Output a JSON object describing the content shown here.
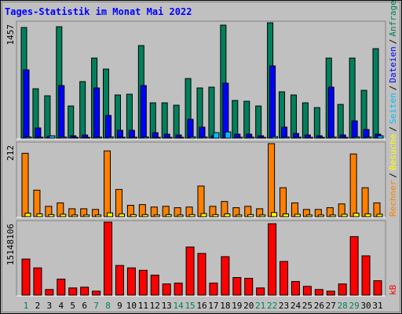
{
  "chart_data": {
    "type": "bar",
    "title": "Tages-Statistik im Monat Mai 2022",
    "categories": [
      "1",
      "2",
      "3",
      "4",
      "5",
      "6",
      "7",
      "8",
      "9",
      "10",
      "11",
      "12",
      "13",
      "14",
      "15",
      "16",
      "17",
      "18",
      "19",
      "20",
      "21",
      "22",
      "23",
      "24",
      "25",
      "26",
      "27",
      "28",
      "29",
      "30",
      "31"
    ],
    "category_colors": [
      "#00805c",
      "#000000",
      "#000000",
      "#000000",
      "#000000",
      "#000000",
      "#00805c",
      "#00805c",
      "#000000",
      "#000000",
      "#000000",
      "#000000",
      "#000000",
      "#00805c",
      "#00805c",
      "#000000",
      "#000000",
      "#000000",
      "#000000",
      "#000000",
      "#00805c",
      "#00805c",
      "#000000",
      "#000000",
      "#000000",
      "#000000",
      "#000000",
      "#00805c",
      "#00805c",
      "#000000",
      "#000000"
    ],
    "legend_separator": "/",
    "panels": [
      {
        "ylim": [
          0,
          1457
        ],
        "yticks": [
          1457
        ],
        "series": [
          {
            "name": "Anfragen",
            "color": "#00805c",
            "values": [
              1397,
              624,
              535,
              1407,
              406,
              714,
              1011,
              872,
              545,
              555,
              1169,
              446,
              446,
              416,
              753,
              634,
              644,
              1427,
              476,
              466,
              406,
              1457,
              585,
              545,
              446,
              386,
              1011,
              426,
              1011,
              604,
              1130
            ]
          },
          {
            "name": "Dateien",
            "color": "#0000ff",
            "values": [
              862,
              129,
              20,
              664,
              30,
              40,
              634,
              287,
              99,
              99,
              664,
              69,
              50,
              40,
              238,
              139,
              30,
              694,
              50,
              50,
              30,
              912,
              139,
              59,
              40,
              30,
              644,
              40,
              218,
              109,
              50
            ]
          },
          {
            "name": "Seiten",
            "color": "#00c0ff",
            "values": [
              15,
              12,
              30,
              14,
              10,
              10,
              13,
              16,
              12,
              12,
              15,
              10,
              10,
              10,
              18,
              14,
              69,
              79,
              12,
              12,
              10,
              20,
              14,
              12,
              10,
              10,
              14,
              10,
              16,
              14,
              30
            ]
          }
        ]
      },
      {
        "ylim": [
          0,
          212
        ],
        "yticks": [
          212
        ],
        "series": [
          {
            "name": "Rechner",
            "color": "#ff8000",
            "values": [
              184,
              77,
              30,
              40,
              23,
              23,
              21,
              191,
              79,
              33,
              35,
              28,
              30,
              26,
              28,
              89,
              30,
              44,
              26,
              30,
              23,
              212,
              84,
              40,
              21,
              21,
              26,
              37,
              182,
              84,
              40
            ]
          },
          {
            "name": "Besuche",
            "color": "#ffff00",
            "values": [
              10,
              8,
              6,
              7,
              5,
              5,
              5,
              11,
              8,
              6,
              6,
              5,
              6,
              5,
              6,
              9,
              6,
              8,
              5,
              6,
              5,
              12,
              8,
              7,
              5,
              5,
              5,
              7,
              10,
              8,
              7
            ]
          }
        ]
      },
      {
        "ylim": [
          0,
          15148106
        ],
        "yticks": [
          15148106
        ],
        "series": [
          {
            "name": "kB",
            "color": "#ff0000",
            "values": [
              7490000,
              5660000,
              1170000,
              3330000,
              1500000,
              1660000,
              830000,
              15148106,
              6160000,
              5660000,
              5160000,
              4160000,
              2330000,
              2500000,
              9990000,
              8660000,
              2500000,
              7990000,
              3660000,
              3500000,
              1500000,
              14820000,
              6990000,
              2830000,
              1830000,
              1170000,
              830000,
              2330000,
              12150000,
              8160000,
              3000000
            ]
          }
        ]
      }
    ]
  }
}
